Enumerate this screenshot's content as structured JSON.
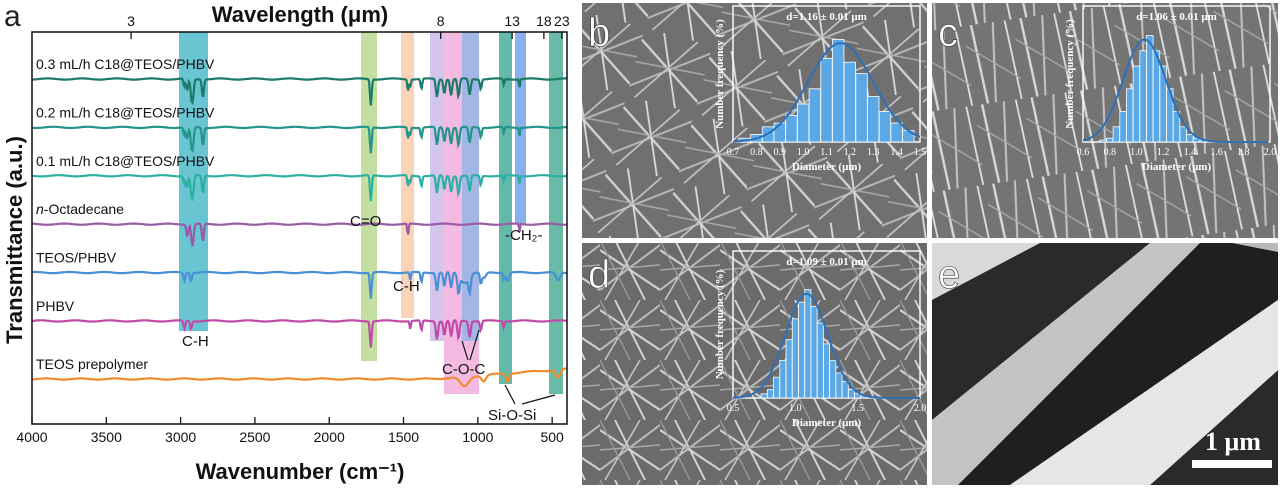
{
  "panels": [
    {
      "letter": "a"
    },
    {
      "letter": "b"
    },
    {
      "letter": "c"
    },
    {
      "letter": "d"
    },
    {
      "letter": "e"
    }
  ],
  "colors": {
    "teal_dark": "#1c7a68",
    "teal_mid": "#23958a",
    "teal_light": "#2bb0a2",
    "purple": "#9a5aa6",
    "blue": "#4a90d6",
    "magenta": "#c04aa8",
    "orange": "#f08c2e",
    "bar_fill": "#5aa8e6",
    "fit_line": "#2f6fb8"
  },
  "chart_data": [
    {
      "type": "line",
      "panel": "a",
      "xlabel": "Wavenumber (cm⁻¹)",
      "ylabel": "Transmittance (a.u.)",
      "top_axis_label": "Wavelength (μm)",
      "xlim": [
        4000,
        400
      ],
      "x_ticks": [
        "4000",
        "3500",
        "3000",
        "2500",
        "2000",
        "1500",
        "1000",
        "500"
      ],
      "x_tick_values": [
        4000,
        3500,
        3000,
        2500,
        2000,
        1500,
        1000,
        500
      ],
      "top_ticks": [
        "3",
        "8",
        "13",
        "18",
        "23"
      ],
      "top_tick_wavenumbers": [
        3333.3,
        1250,
        769.2,
        555.6,
        434.8
      ],
      "band_labels": [
        "C-H",
        "C=O",
        "C-H",
        "C-O-C",
        "-CH₂-",
        "Si-O-Si"
      ],
      "series": [
        {
          "name": "0.3 mL/h C18@TEOS/PHBV",
          "color": "#1c7a68",
          "offset": 7.2
        },
        {
          "name": "0.2 mL/h C18@TEOS/PHBV",
          "color": "#23958a",
          "offset": 6.2
        },
        {
          "name": "0.1 mL/h C18@TEOS/PHBV",
          "color": "#2bb0a2",
          "offset": 5.2
        },
        {
          "name": "n-Octadecane",
          "color": "#9a5aa6",
          "offset": 4.2
        },
        {
          "name": "TEOS/PHBV",
          "color": "#4a90d6",
          "offset": 3.2
        },
        {
          "name": "PHBV",
          "color": "#c04aa8",
          "offset": 2.2
        },
        {
          "name": "TEOS prepolymer",
          "color": "#f08c2e",
          "offset": 1.0
        }
      ]
    },
    {
      "type": "bar",
      "panel": "b",
      "annotation": "d=1.16 ± 0.01 μm",
      "xlabel": "Diameter (μm)",
      "ylabel": "Number frequency (%)",
      "xlim": [
        0.7,
        1.5
      ],
      "x_ticks": [
        "0.7",
        "0.8",
        "0.9",
        "1.0",
        "1.1",
        "1.2",
        "1.3",
        "1.4",
        "1.5"
      ],
      "x": [
        0.75,
        0.8,
        0.85,
        0.9,
        0.95,
        1.0,
        1.05,
        1.1,
        1.15,
        1.2,
        1.25,
        1.3,
        1.35,
        1.4,
        1.45
      ],
      "values": [
        1,
        2,
        4,
        5,
        7,
        10,
        14,
        22,
        27,
        21,
        18,
        12,
        8,
        5,
        3
      ],
      "fit_mean": 1.16,
      "fit_sd": 0.14,
      "fit_peak": 26
    },
    {
      "type": "bar",
      "panel": "c",
      "annotation": "d=1.06 ± 0.01 μm",
      "xlabel": "Diameter (μm)",
      "ylabel": "Number frequency (%)",
      "xlim": [
        0.6,
        2.0
      ],
      "x_ticks": [
        "0.6",
        "0.8",
        "1.0",
        "1.2",
        "1.4",
        "1.6",
        "1.8",
        "2.0"
      ],
      "x": [
        0.75,
        0.8,
        0.85,
        0.9,
        0.95,
        1.0,
        1.05,
        1.1,
        1.15,
        1.2,
        1.25,
        1.3,
        1.35,
        1.4,
        1.45,
        1.5,
        1.55
      ],
      "values": [
        0.5,
        1,
        4,
        8,
        14,
        20,
        24,
        28,
        24,
        20,
        14,
        8,
        4,
        2,
        1,
        0.5,
        0.3
      ],
      "fit_mean": 1.06,
      "fit_sd": 0.16,
      "fit_peak": 27
    },
    {
      "type": "bar",
      "panel": "d",
      "annotation": "d=1.09 ± 0.01 μm",
      "xlabel": "Diameter (μm)",
      "ylabel": "Number frequency (%)",
      "xlim": [
        0.5,
        2.0
      ],
      "x_ticks": [
        "0.5",
        "1.0",
        "1.5",
        "2.0"
      ],
      "x": [
        0.75,
        0.8,
        0.85,
        0.9,
        0.95,
        1.0,
        1.05,
        1.1,
        1.15,
        1.2,
        1.25,
        1.3,
        1.35,
        1.4,
        1.45,
        1.5,
        1.55,
        1.6
      ],
      "values": [
        1,
        2,
        5,
        9,
        14,
        19,
        23,
        26,
        22,
        18,
        13,
        9,
        6,
        4,
        2,
        1,
        0.5,
        0.3
      ],
      "fit_mean": 1.09,
      "fit_sd": 0.17,
      "fit_peak": 25
    }
  ],
  "panel_e": {
    "scalebar": "1 μm"
  }
}
